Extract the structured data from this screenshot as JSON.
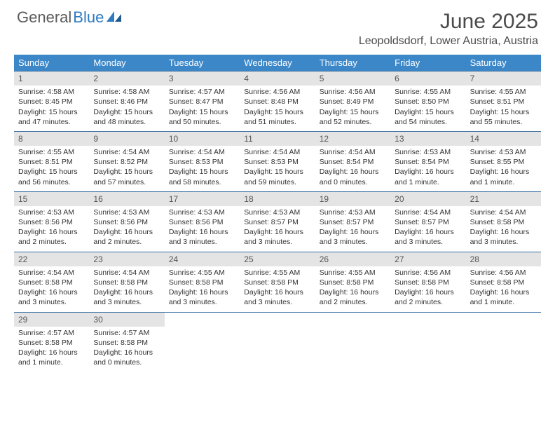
{
  "logo": {
    "text1": "General",
    "text2": "Blue"
  },
  "title": "June 2025",
  "subtitle": "Leopoldsdorf, Lower Austria, Austria",
  "day_names": [
    "Sunday",
    "Monday",
    "Tuesday",
    "Wednesday",
    "Thursday",
    "Friday",
    "Saturday"
  ],
  "colors": {
    "header_bg": "#3b87c8",
    "header_text": "#ffffff",
    "row_border": "#3b6fa0",
    "num_bg": "#e4e4e4",
    "text": "#333333",
    "logo_gray": "#5a5a5a",
    "logo_blue": "#2f7ac0"
  },
  "weeks": [
    [
      {
        "n": "1",
        "sr": "Sunrise: 4:58 AM",
        "ss": "Sunset: 8:45 PM",
        "d1": "Daylight: 15 hours",
        "d2": "and 47 minutes."
      },
      {
        "n": "2",
        "sr": "Sunrise: 4:58 AM",
        "ss": "Sunset: 8:46 PM",
        "d1": "Daylight: 15 hours",
        "d2": "and 48 minutes."
      },
      {
        "n": "3",
        "sr": "Sunrise: 4:57 AM",
        "ss": "Sunset: 8:47 PM",
        "d1": "Daylight: 15 hours",
        "d2": "and 50 minutes."
      },
      {
        "n": "4",
        "sr": "Sunrise: 4:56 AM",
        "ss": "Sunset: 8:48 PM",
        "d1": "Daylight: 15 hours",
        "d2": "and 51 minutes."
      },
      {
        "n": "5",
        "sr": "Sunrise: 4:56 AM",
        "ss": "Sunset: 8:49 PM",
        "d1": "Daylight: 15 hours",
        "d2": "and 52 minutes."
      },
      {
        "n": "6",
        "sr": "Sunrise: 4:55 AM",
        "ss": "Sunset: 8:50 PM",
        "d1": "Daylight: 15 hours",
        "d2": "and 54 minutes."
      },
      {
        "n": "7",
        "sr": "Sunrise: 4:55 AM",
        "ss": "Sunset: 8:51 PM",
        "d1": "Daylight: 15 hours",
        "d2": "and 55 minutes."
      }
    ],
    [
      {
        "n": "8",
        "sr": "Sunrise: 4:55 AM",
        "ss": "Sunset: 8:51 PM",
        "d1": "Daylight: 15 hours",
        "d2": "and 56 minutes."
      },
      {
        "n": "9",
        "sr": "Sunrise: 4:54 AM",
        "ss": "Sunset: 8:52 PM",
        "d1": "Daylight: 15 hours",
        "d2": "and 57 minutes."
      },
      {
        "n": "10",
        "sr": "Sunrise: 4:54 AM",
        "ss": "Sunset: 8:53 PM",
        "d1": "Daylight: 15 hours",
        "d2": "and 58 minutes."
      },
      {
        "n": "11",
        "sr": "Sunrise: 4:54 AM",
        "ss": "Sunset: 8:53 PM",
        "d1": "Daylight: 15 hours",
        "d2": "and 59 minutes."
      },
      {
        "n": "12",
        "sr": "Sunrise: 4:54 AM",
        "ss": "Sunset: 8:54 PM",
        "d1": "Daylight: 16 hours",
        "d2": "and 0 minutes."
      },
      {
        "n": "13",
        "sr": "Sunrise: 4:53 AM",
        "ss": "Sunset: 8:54 PM",
        "d1": "Daylight: 16 hours",
        "d2": "and 1 minute."
      },
      {
        "n": "14",
        "sr": "Sunrise: 4:53 AM",
        "ss": "Sunset: 8:55 PM",
        "d1": "Daylight: 16 hours",
        "d2": "and 1 minute."
      }
    ],
    [
      {
        "n": "15",
        "sr": "Sunrise: 4:53 AM",
        "ss": "Sunset: 8:56 PM",
        "d1": "Daylight: 16 hours",
        "d2": "and 2 minutes."
      },
      {
        "n": "16",
        "sr": "Sunrise: 4:53 AM",
        "ss": "Sunset: 8:56 PM",
        "d1": "Daylight: 16 hours",
        "d2": "and 2 minutes."
      },
      {
        "n": "17",
        "sr": "Sunrise: 4:53 AM",
        "ss": "Sunset: 8:56 PM",
        "d1": "Daylight: 16 hours",
        "d2": "and 3 minutes."
      },
      {
        "n": "18",
        "sr": "Sunrise: 4:53 AM",
        "ss": "Sunset: 8:57 PM",
        "d1": "Daylight: 16 hours",
        "d2": "and 3 minutes."
      },
      {
        "n": "19",
        "sr": "Sunrise: 4:53 AM",
        "ss": "Sunset: 8:57 PM",
        "d1": "Daylight: 16 hours",
        "d2": "and 3 minutes."
      },
      {
        "n": "20",
        "sr": "Sunrise: 4:54 AM",
        "ss": "Sunset: 8:57 PM",
        "d1": "Daylight: 16 hours",
        "d2": "and 3 minutes."
      },
      {
        "n": "21",
        "sr": "Sunrise: 4:54 AM",
        "ss": "Sunset: 8:58 PM",
        "d1": "Daylight: 16 hours",
        "d2": "and 3 minutes."
      }
    ],
    [
      {
        "n": "22",
        "sr": "Sunrise: 4:54 AM",
        "ss": "Sunset: 8:58 PM",
        "d1": "Daylight: 16 hours",
        "d2": "and 3 minutes."
      },
      {
        "n": "23",
        "sr": "Sunrise: 4:54 AM",
        "ss": "Sunset: 8:58 PM",
        "d1": "Daylight: 16 hours",
        "d2": "and 3 minutes."
      },
      {
        "n": "24",
        "sr": "Sunrise: 4:55 AM",
        "ss": "Sunset: 8:58 PM",
        "d1": "Daylight: 16 hours",
        "d2": "and 3 minutes."
      },
      {
        "n": "25",
        "sr": "Sunrise: 4:55 AM",
        "ss": "Sunset: 8:58 PM",
        "d1": "Daylight: 16 hours",
        "d2": "and 3 minutes."
      },
      {
        "n": "26",
        "sr": "Sunrise: 4:55 AM",
        "ss": "Sunset: 8:58 PM",
        "d1": "Daylight: 16 hours",
        "d2": "and 2 minutes."
      },
      {
        "n": "27",
        "sr": "Sunrise: 4:56 AM",
        "ss": "Sunset: 8:58 PM",
        "d1": "Daylight: 16 hours",
        "d2": "and 2 minutes."
      },
      {
        "n": "28",
        "sr": "Sunrise: 4:56 AM",
        "ss": "Sunset: 8:58 PM",
        "d1": "Daylight: 16 hours",
        "d2": "and 1 minute."
      }
    ],
    [
      {
        "n": "29",
        "sr": "Sunrise: 4:57 AM",
        "ss": "Sunset: 8:58 PM",
        "d1": "Daylight: 16 hours",
        "d2": "and 1 minute."
      },
      {
        "n": "30",
        "sr": "Sunrise: 4:57 AM",
        "ss": "Sunset: 8:58 PM",
        "d1": "Daylight: 16 hours",
        "d2": "and 0 minutes."
      },
      null,
      null,
      null,
      null,
      null
    ]
  ]
}
